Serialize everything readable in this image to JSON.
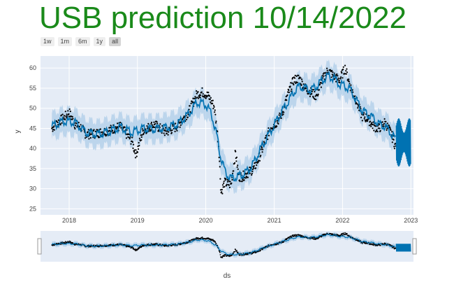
{
  "title": "USB prediction 10/14/2022",
  "range_selector": [
    "1w",
    "1m",
    "6m",
    "1y",
    "all"
  ],
  "range_selector_active": "all",
  "colors": {
    "title": "#1a8a1a",
    "plot_bg": "#e5ecf6",
    "forecast_line": "#0072b2",
    "interval_band": "#aecde8",
    "observed_points": "#000000"
  },
  "chart_data": {
    "type": "line",
    "title": "",
    "xlabel": "ds",
    "ylabel": "y",
    "x_range": [
      "2017-08-01",
      "2023-01-15"
    ],
    "ylim": [
      23.5,
      63
    ],
    "x_ticks": [
      "2018",
      "2019",
      "2020",
      "2021",
      "2022",
      "2023"
    ],
    "y_ticks": [
      25,
      30,
      35,
      40,
      45,
      50,
      55,
      60
    ],
    "grid": true,
    "range_slider": true,
    "series": [
      {
        "role": "forecast",
        "x": [
          "2017-10-01",
          "2017-12-01",
          "2018-02-01",
          "2018-04-01",
          "2018-06-01",
          "2018-08-01",
          "2018-10-01",
          "2018-12-01",
          "2019-02-01",
          "2019-04-01",
          "2019-06-01",
          "2019-08-01",
          "2019-10-01",
          "2019-11-15",
          "2020-01-01",
          "2020-02-01",
          "2020-03-01",
          "2020-03-20",
          "2020-04-15",
          "2020-05-15",
          "2020-06-15",
          "2020-07-15",
          "2020-08-15",
          "2020-09-15",
          "2020-10-15",
          "2020-11-15",
          "2020-12-15",
          "2021-01-15",
          "2021-02-15",
          "2021-03-15",
          "2021-04-15",
          "2021-05-15",
          "2021-06-15",
          "2021-07-15",
          "2021-08-15",
          "2021-09-15",
          "2021-10-15",
          "2021-11-15",
          "2021-12-15",
          "2022-01-15",
          "2022-02-15",
          "2022-03-15",
          "2022-04-15",
          "2022-05-15",
          "2022-06-15",
          "2022-07-15",
          "2022-08-15",
          "2022-09-15",
          "2022-10-14"
        ],
        "y": [
          45.5,
          46.8,
          46.5,
          44.0,
          43.5,
          44.2,
          45.3,
          44.0,
          45.0,
          44.8,
          45.2,
          46.0,
          48.5,
          51.5,
          51.0,
          48.5,
          43.0,
          38.0,
          34.0,
          32.5,
          33.0,
          33.5,
          34.5,
          36.5,
          39.5,
          42.0,
          44.5,
          47.0,
          49.5,
          51.5,
          54.0,
          55.5,
          55.0,
          54.5,
          55.5,
          57.0,
          58.0,
          57.5,
          56.0,
          55.5,
          54.5,
          52.0,
          49.5,
          48.5,
          47.5,
          46.0,
          45.5,
          44.0,
          42.0
        ]
      },
      {
        "role": "observed",
        "x": [
          "2017-10-01",
          "2017-11-01",
          "2017-12-01",
          "2018-01-01",
          "2018-02-01",
          "2018-03-01",
          "2018-04-01",
          "2018-06-01",
          "2018-08-01",
          "2018-10-01",
          "2018-12-01",
          "2018-12-24",
          "2019-02-01",
          "2019-04-01",
          "2019-06-01",
          "2019-08-01",
          "2019-10-01",
          "2019-11-15",
          "2019-12-15",
          "2020-01-15",
          "2020-02-15",
          "2020-03-10",
          "2020-03-23",
          "2020-04-10",
          "2020-05-15",
          "2020-06-08",
          "2020-06-26",
          "2020-07-15",
          "2020-08-15",
          "2020-09-15",
          "2020-10-15",
          "2020-11-15",
          "2020-12-15",
          "2021-01-15",
          "2021-02-15",
          "2021-03-15",
          "2021-04-15",
          "2021-05-15",
          "2021-06-15",
          "2021-07-15",
          "2021-08-15",
          "2021-09-15",
          "2021-10-15",
          "2021-11-15",
          "2021-12-15",
          "2022-01-15",
          "2022-02-15",
          "2022-03-15",
          "2022-04-15",
          "2022-05-15",
          "2022-06-15",
          "2022-07-15",
          "2022-08-15",
          "2022-09-15",
          "2022-10-14"
        ],
        "y": [
          45.0,
          46.5,
          47.5,
          49.0,
          46.0,
          45.5,
          43.5,
          43.8,
          44.5,
          45.5,
          42.0,
          38.5,
          44.5,
          46.0,
          44.0,
          45.5,
          49.0,
          53.5,
          54.0,
          53.0,
          50.5,
          41.0,
          29.0,
          31.5,
          31.0,
          39.0,
          33.0,
          33.0,
          34.0,
          35.0,
          38.0,
          42.0,
          45.5,
          46.5,
          49.0,
          53.5,
          57.0,
          57.5,
          55.0,
          54.0,
          53.0,
          57.0,
          59.5,
          58.0,
          57.0,
          60.0,
          55.0,
          52.0,
          48.0,
          47.5,
          45.5,
          45.0,
          46.5,
          44.0,
          40.0
        ]
      },
      {
        "role": "forecast_oscillation",
        "x_range": [
          "2022-10-14",
          "2023-01-01"
        ],
        "y_range": [
          35.5,
          47.5
        ]
      }
    ]
  }
}
